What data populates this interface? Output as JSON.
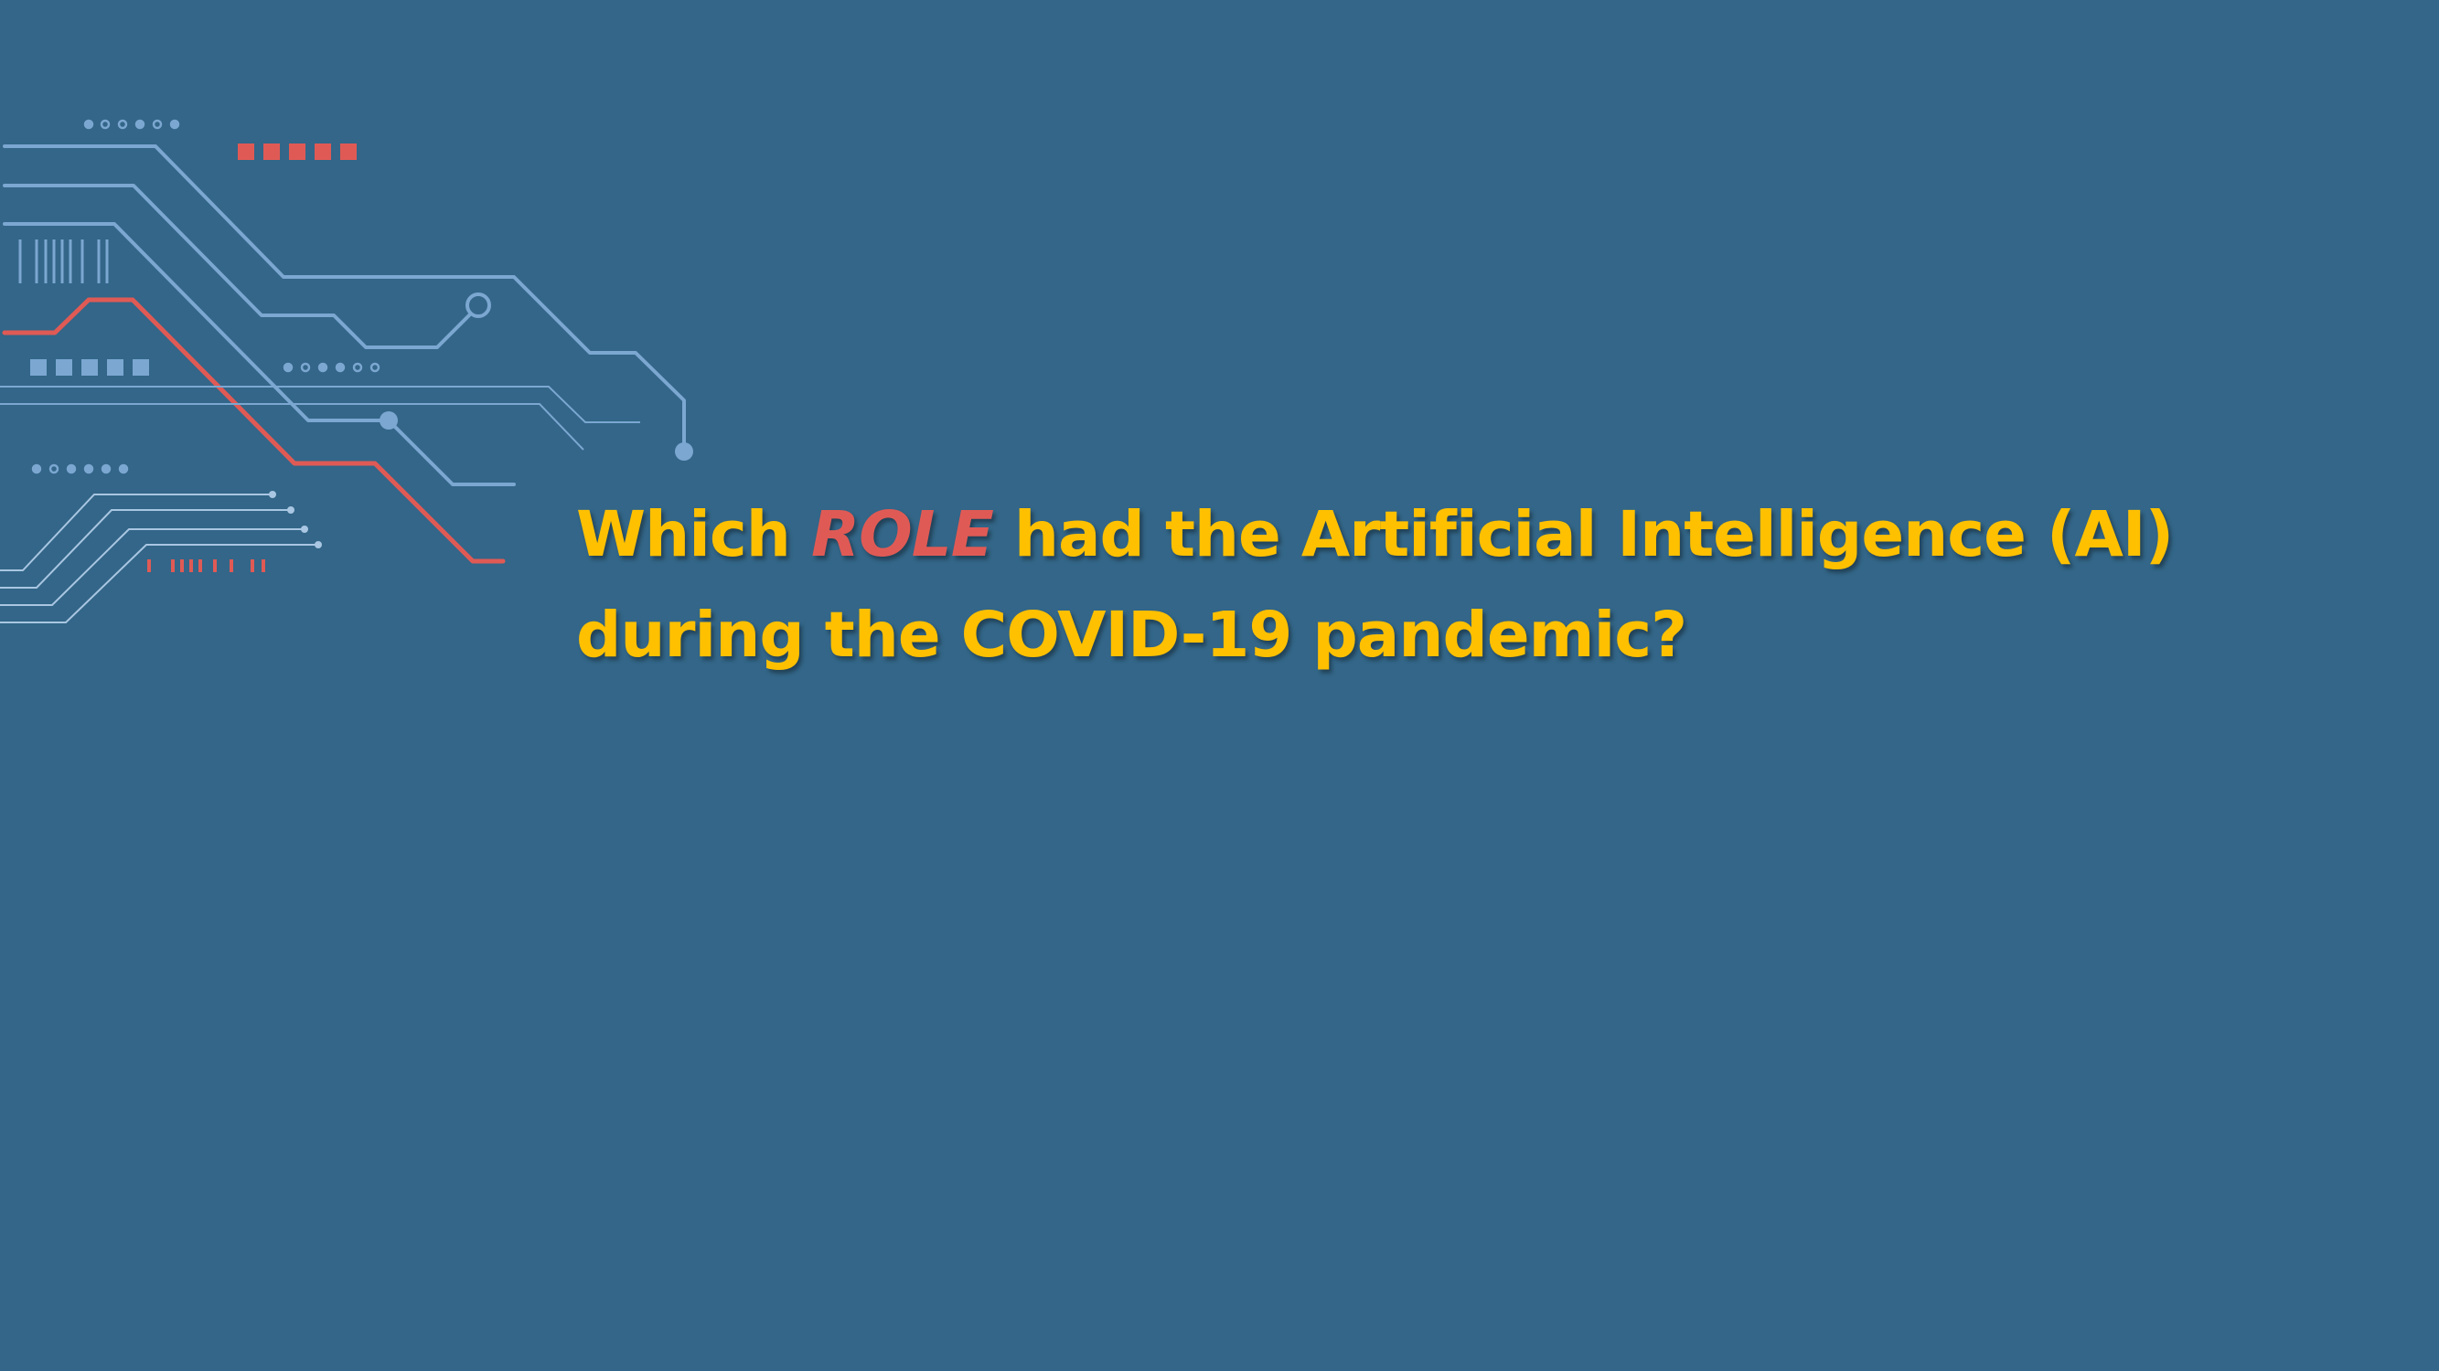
{
  "slide": {
    "title": {
      "line1_before": "Which ",
      "highlight": "ROLE",
      "line1_after": " had the Artificial Intelligence (AI)",
      "line2": "during the COVID-19 pandemic?"
    }
  },
  "colors": {
    "background": "#336688",
    "title_text": "#FFC000",
    "highlight_text": "#E05A55",
    "circuit_blue": "#7BA7D1",
    "circuit_red": "#E05A55"
  },
  "decoration": {
    "name": "circuit-board-graphic"
  }
}
